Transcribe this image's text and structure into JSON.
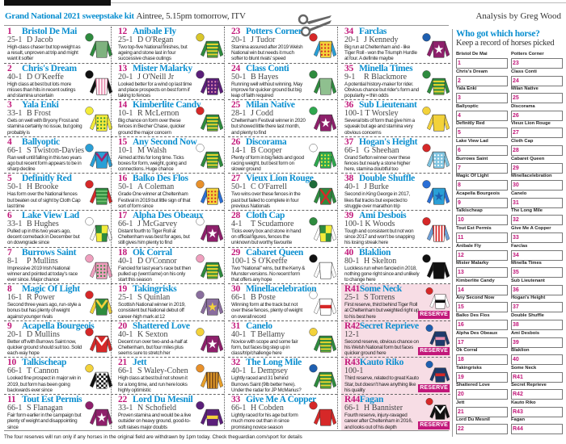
{
  "header": {
    "title": "Grand National 2021 sweepstake kit",
    "subtitle": "Aintree, 5.15pm tomorrow, ITV",
    "byline": "Analysis by Greg Wood"
  },
  "colors": {
    "accent": "#0a8fd0",
    "number": "#c2187a",
    "reserve_bg": "#f7dde5"
  },
  "reserve_label": "RESERVE",
  "horses": [
    {
      "num": "1",
      "name": "Bristol De Mai",
      "odds": "25-1",
      "jockey": "D Jacob",
      "desc": "High-class chaser but top weight as a result, unproven at trip and might want it softer",
      "silk": {
        "cap": "#2e8b3e",
        "body": "#7fb27f",
        "sleeves": "#2e8b3e",
        "pattern": "plain",
        "accent": "#2e8b3e"
      }
    },
    {
      "num": "2",
      "name": "Chris's Dream",
      "odds": "40-1",
      "jockey": "D O'Keeffe",
      "desc": "High class at best but lots more misses than hits in recent outings and stamina uncertain",
      "silk": {
        "cap": "#111",
        "body": "#fff",
        "sleeves": "#111",
        "pattern": "stripes",
        "accent": "#e88fb0"
      }
    },
    {
      "num": "3",
      "name": "Yala Enki",
      "odds": "33-1",
      "jockey": "B Frost",
      "desc": "Gets on well with Bryony Frost and stamina certainly no issue, but going probably is",
      "silk": {
        "cap": "#f3ec3a",
        "body": "#f3ec3a",
        "sleeves": "#f3ec3a",
        "pattern": "spots",
        "accent": "#2e8b3e"
      }
    },
    {
      "num": "4",
      "name": "Ballyoptic",
      "odds": "66-1",
      "jockey": "S Twiston-Davies",
      "desc": "Ran well until falling in this two years ago but recent form appears to be in sharp decline",
      "silk": {
        "cap": "#2a9fd6",
        "body": "#2a9fd6",
        "sleeves": "#2a9fd6",
        "pattern": "chevron",
        "accent": "#a0236e"
      }
    },
    {
      "num": "5",
      "name": "Definitly Red",
      "odds": "50-1",
      "jockey": "H Brooke",
      "desc": "Has form over the National fences but beaten out of sight by Cloth Cap last time",
      "silk": {
        "cap": "#d62828",
        "body": "#2e8b3e",
        "sleeves": "#d62828",
        "pattern": "hoops",
        "accent": "#6fbf6f"
      }
    },
    {
      "num": "6",
      "name": "Lake View Lad",
      "odds": "33-1",
      "jockey": "B Hughes",
      "desc": "Pulled up in this two years ago, decent comeback in December but on downgrade since",
      "silk": {
        "cap": "#fff",
        "body": "#2e8b3e",
        "sleeves": "#fff",
        "pattern": "quartered",
        "accent": "#f3ec3a"
      }
    },
    {
      "num": "7",
      "name": "Burrows Saint",
      "odds": "8-1",
      "jockey": "P Mullins",
      "desc": "Impressive 2019 Irish National winner and pointed at today's race ever since. Major chance",
      "silk": {
        "cap": "#ef9fbe",
        "body": "#ef9fbe",
        "sleeves": "#ef9fbe",
        "pattern": "spots",
        "accent": "#2e8b3e"
      }
    },
    {
      "num": "8",
      "name": "Magic Of Light",
      "odds": "16-1",
      "jockey": "R Power",
      "desc": "Second three years ago, run-style a bonus but has plenty of weight against younger rivals",
      "silk": {
        "cap": "#d62828",
        "body": "#2e8b3e",
        "sleeves": "#f3d23a",
        "pattern": "chevron",
        "accent": "#f3d23a"
      }
    },
    {
      "num": "9",
      "name": "Acapella Bourgeois",
      "odds": "20-1",
      "jockey": "D Mullins",
      "desc": "Better off with Burrows Saint now, quicker ground should suit too. Solid each-way hope",
      "silk": {
        "cap": "#d62828",
        "body": "#d62828",
        "sleeves": "#d62828",
        "pattern": "chevron",
        "accent": "#fff"
      }
    },
    {
      "num": "10",
      "name": "Talkischeap",
      "odds": "66-1",
      "jockey": "T Cannon",
      "desc": "Looked fine prospect in major win in 2019, but form has been going backwards ever since",
      "silk": {
        "cap": "#f3d23a",
        "body": "#fff",
        "sleeves": "#111",
        "pattern": "checks",
        "accent": "#111"
      }
    },
    {
      "num": "11",
      "name": "Tout Est Permis",
      "odds": "66-1",
      "jockey": "S Flanagan",
      "desc": "Fair form earlier in the campaign but plenty of weight and disappointing since",
      "silk": {
        "cap": "#8e1f6b",
        "body": "#8e1f6b",
        "sleeves": "#8e1f6b",
        "pattern": "star",
        "accent": "#fff"
      }
    },
    {
      "num": "12",
      "name": "Anibale Fly",
      "odds": "25-1",
      "jockey": "D O'Regan",
      "desc": "Two top-five National finishes, but ageing and stone last in four successive chase outings",
      "silk": {
        "cap": "#d9c62a",
        "body": "#2e8b3e",
        "sleeves": "#2e8b3e",
        "pattern": "hoops",
        "accent": "#e2d22f"
      }
    },
    {
      "num": "13",
      "name": "Mister Malarky",
      "odds": "20-1",
      "jockey": "J O'Neill Jr",
      "desc": "Looked better for a wind op last time and place prospects on best form if taking to fences",
      "silk": {
        "cap": "#5b1f7a",
        "body": "#5b1f7a",
        "sleeves": "#5b1f7a",
        "pattern": "spots",
        "accent": "#e88fb0"
      }
    },
    {
      "num": "14",
      "name": "Kimberlite Candy",
      "odds": "10-1",
      "jockey": "R McLernon",
      "desc": "Big chance on form over these fences in Becher Chase, quicker ground the major concern",
      "silk": {
        "cap": "#d62828",
        "body": "#2e8b3e",
        "sleeves": "#2e8b3e",
        "pattern": "hoops",
        "accent": "#e2d22f"
      }
    },
    {
      "num": "15",
      "name": "Any Second Now",
      "odds": "10-1",
      "jockey": "M Walsh",
      "desc": "Aimed at this for long time. Ticks boxes for form, weight, going and connections. Huge chance",
      "silk": {
        "cap": "#fff",
        "body": "#2e8b3e",
        "sleeves": "#2e8b3e",
        "pattern": "hoops",
        "accent": "#e2d22f"
      }
    },
    {
      "num": "16",
      "name": "Balko Des Flos",
      "odds": "50-1",
      "jockey": "A Coleman",
      "desc": "Grade One winner at Cheltenham Festival in 2019 but little sign of that sort of form since",
      "silk": {
        "cap": "#e8902a",
        "body": "#f3d23a",
        "sleeves": "#2a6fd6",
        "pattern": "spots",
        "accent": "#d62828"
      }
    },
    {
      "num": "17",
      "name": "Alpha Des Obeaux",
      "odds": "66-1",
      "jockey": "J McGarvey",
      "desc": "Distant fourth to Tiger Roll at Cheltenham was best for ages, but still gives him plenty to find",
      "silk": {
        "cap": "#fff",
        "body": "#8e1f6b",
        "sleeves": "#8e1f6b",
        "pattern": "star",
        "accent": "#fff"
      }
    },
    {
      "num": "18",
      "name": "Ok Corral",
      "odds": "40-1",
      "jockey": "D O'Connor",
      "desc": "Fancied for last year's race but then pulled up (went lame) on his only start this season",
      "silk": {
        "cap": "#ef9fbe",
        "body": "#2e8b3e",
        "sleeves": "#2e8b3e",
        "pattern": "hoops",
        "accent": "#e2d22f"
      }
    },
    {
      "num": "19",
      "name": "Takingrisks",
      "odds": "25-1",
      "jockey": "S Quinlan",
      "desc": "Scottish National winner in 2019, consistent but National debut off career-high mark at 12",
      "silk": {
        "cap": "#8a6e9e",
        "body": "#8a6e9e",
        "sleeves": "#8a6e9e",
        "pattern": "star",
        "accent": "#f3d23a"
      }
    },
    {
      "num": "20",
      "name": "Shattered Love",
      "odds": "40-1",
      "jockey": "K Sexton",
      "desc": "Decent run over two-and-a-half at Cheltenham, but four miles plus seems sure to stretch her",
      "silk": {
        "cap": "#f3d23a",
        "body": "#8e1f6b",
        "sleeves": "#8e1f6b",
        "pattern": "star",
        "accent": "#fff"
      }
    },
    {
      "num": "21",
      "name": "Jett",
      "odds": "66-1",
      "jockey": "S Waley-Cohen",
      "desc": "High class at best but not shown it for a long time, and run here looks highly optimistic",
      "silk": {
        "cap": "#e8902a",
        "body": "#e8a02a",
        "sleeves": "#e8a02a",
        "pattern": "stripes",
        "accent": "#7a4a1a"
      }
    },
    {
      "num": "22",
      "name": "Lord Du Mesnil",
      "odds": "33-1",
      "jockey": "N Schofield",
      "desc": "Proven stamina and would be a live outsider on heavy ground, good-to-soft raises major doubts",
      "silk": {
        "cap": "#5b1f7a",
        "body": "#5b1f7a",
        "sleeves": "#5b1f7a",
        "pattern": "band",
        "accent": "#f3d23a"
      }
    },
    {
      "num": "23",
      "name": "Potters Corner",
      "odds": "20-1",
      "jockey": "J Tudor",
      "desc": "Stamina assured after 2019 Welsh National win but needs it much softer to blunt rivals' speed",
      "silk": {
        "cap": "#d62828",
        "body": "#f3d23a",
        "sleeves": "#2a9fd6",
        "pattern": "spots",
        "accent": "#d62828"
      }
    },
    {
      "num": "24",
      "name": "Class Conti",
      "odds": "50-1",
      "jockey": "B Hayes",
      "desc": "Running well without winning. May improve for quicker ground but big leap of faith required",
      "silk": {
        "cap": "#2e8b3e",
        "body": "#8fc08f",
        "sleeves": "#2e8b3e",
        "pattern": "plain",
        "accent": "#2e8b3e"
      }
    },
    {
      "num": "25",
      "name": "Milan Native",
      "odds": "28-1",
      "jockey": "J Codd",
      "desc": "Cheltenham Festival winner in 2020 but showed little there last month, and plenty to find",
      "silk": {
        "cap": "#2ea84e",
        "body": "#8e1f6b",
        "sleeves": "#8e1f6b",
        "pattern": "star",
        "accent": "#fff"
      }
    },
    {
      "num": "26",
      "name": "Discorama",
      "odds": "14-1",
      "jockey": "B Cooper",
      "desc": "Plenty of form in big fields and good racing weight, but best form on slower ground",
      "silk": {
        "cap": "#fff",
        "body": "#2ea84e",
        "sleeves": "#2ea84e",
        "pattern": "spots",
        "accent": "#f3ec3a"
      }
    },
    {
      "num": "27",
      "name": "Vieux Lion Rouge",
      "odds": "50-1",
      "jockey": "C O'Farrell",
      "desc": "Two wins over these fences in the past but failed to complete in four previous Nationals",
      "silk": {
        "cap": "#1e6b3a",
        "body": "#2e8b3e",
        "sleeves": "#2e8b3e",
        "pattern": "cross",
        "accent": "#d62828"
      }
    },
    {
      "num": "28",
      "name": "Cloth Cap",
      "odds": "4-1",
      "jockey": "T Scudamore",
      "desc": "Ticks every box and stone in hand on official figures, fences the unknown but worthy favourite",
      "silk": {
        "cap": "#2e8b3e",
        "body": "#2e8b3e",
        "sleeves": "#fff",
        "pattern": "quartered",
        "accent": "#f3ec3a"
      }
    },
    {
      "num": "29",
      "name": "Cabaret Queen",
      "odds": "100-1",
      "jockey": "S O'Keeffe",
      "desc": "Two \"National\" wins, but the Kerry & Munster versions. No recent form that offers any hope",
      "silk": {
        "cap": "#111",
        "body": "#fff",
        "sleeves": "#fff",
        "pattern": "plain",
        "accent": "#d62828"
      }
    },
    {
      "num": "30",
      "name": "Minellacelebration",
      "odds": "66-1",
      "jockey": "B Poste",
      "desc": "Winning form at the track but not over these fences, plenty of weight on overall record",
      "silk": {
        "cap": "#fff",
        "body": "#fff",
        "sleeves": "#fff",
        "pattern": "band",
        "accent": "#d62828"
      }
    },
    {
      "num": "31",
      "name": "Canelo",
      "odds": "40-1",
      "jockey": "T Bellamy",
      "desc": "Novice with scope and some fair form, but faces big step up in class/trip/challenge here",
      "silk": {
        "cap": "#f3d23a",
        "body": "#2e8b3e",
        "sleeves": "#2e8b3e",
        "pattern": "hoops",
        "accent": "#e2d22f"
      }
    },
    {
      "num": "32",
      "name": "The Long Mile",
      "odds": "40-1",
      "jockey": "L Dempsey",
      "desc": "Lightly raced and 31 behind Burrows Saint (9lb better here). Under the radar for JP McManus?",
      "silk": {
        "cap": "#1e5fb0",
        "body": "#2e8b3e",
        "sleeves": "#2e8b3e",
        "pattern": "hoops",
        "accent": "#e2d22f"
      }
    },
    {
      "num": "33",
      "name": "Give Me A Copper",
      "odds": "66-1",
      "jockey": "H Cobden",
      "desc": "Lightly raced for his age but form much more out than in since promising novice season",
      "silk": {
        "cap": "#d62828",
        "body": "#d62828",
        "sleeves": "#d62828",
        "pattern": "plain",
        "accent": "#fff"
      }
    },
    {
      "num": "34",
      "name": "Farclas",
      "odds": "20-1",
      "jockey": "J Kennedy",
      "desc": "Big run at Cheltenham and - like Tiger Roll - won the Triumph Hurdle at four. A definite maybe",
      "silk": {
        "cap": "#1e5fb0",
        "body": "#8e1f6b",
        "sleeves": "#8e1f6b",
        "pattern": "star",
        "accent": "#fff"
      }
    },
    {
      "num": "35",
      "name": "Minella Times",
      "odds": "9-1",
      "jockey": "R Blackmore",
      "desc": "A potential history-maker for rider. Obvious chance but rider's form and popularity = thin odds",
      "silk": {
        "cap": "#2e8b3e",
        "body": "#2e8b3e",
        "sleeves": "#2e8b3e",
        "pattern": "hoops",
        "accent": "#e2d22f"
      }
    },
    {
      "num": "36",
      "name": "Sub Lieutenant",
      "odds": "100-1",
      "jockey": "T Worsley",
      "desc": "Several bits of form that give him a squeak but age and stamina very obvious concerns",
      "silk": {
        "cap": "#f3d23a",
        "body": "#f3d23a",
        "sleeves": "#f3d23a",
        "pattern": "plain",
        "accent": "#8e1f6b"
      }
    },
    {
      "num": "37",
      "name": "Hogan's Height",
      "odds": "66-1",
      "jockey": "G Sheehan",
      "desc": "Grand Sefton winner over these fences but nearly a stone higher here, stamina doubtful too",
      "silk": {
        "cap": "#d62828",
        "body": "#7fc4e0",
        "sleeves": "#7fc4e0",
        "pattern": "spots",
        "accent": "#fff"
      }
    },
    {
      "num": "38",
      "name": "Double Shuffle",
      "odds": "40-1",
      "jockey": "J Burke",
      "desc": "Second in King George in 2017, likes flat tracks but expected to struggle over marathon trip",
      "silk": {
        "cap": "#2a6fd6",
        "body": "#2a9fd6",
        "sleeves": "#2a6fd6",
        "pattern": "star",
        "accent": "#1e5fb0"
      }
    },
    {
      "num": "39",
      "name": "Ami Desbois",
      "odds": "100-1",
      "jockey": "K Woods",
      "desc": "Tough and consistent but not won since 2017 and won't be snapping his losing streak here",
      "silk": {
        "cap": "#d62828",
        "body": "#fff",
        "sleeves": "#6fa0d8",
        "pattern": "stripes",
        "accent": "#d62828"
      }
    },
    {
      "num": "40",
      "name": "Blaklion",
      "odds": "80-1",
      "jockey": "H Skelton",
      "desc": "Luckless run when fancied in 2018, nothing gone right since and unlikely to change here",
      "silk": {
        "cap": "#111",
        "body": "#111",
        "sleeves": "#111",
        "pattern": "plain",
        "accent": "#999"
      }
    },
    {
      "num": "R41",
      "name": "Some Neck",
      "odds": "25-1",
      "jockey": "S Torrens",
      "desc": "First reserve, third behind Tiger Roll at Cheltenham but weighted right up to his best here",
      "reserve": true,
      "silk": {
        "cap": "#d62828",
        "body": "#fff",
        "sleeves": "#fff",
        "pattern": "band",
        "accent": "#111"
      }
    },
    {
      "num": "R42",
      "name": "Secret Reprieve",
      "odds": "12-1",
      "jockey": "",
      "desc": "Second reserve, obvious chance on his Welsh National form but faces quicker ground here",
      "reserve": true,
      "silk": {
        "cap": "#1e5fb0",
        "body": "#1e3a6b",
        "sleeves": "#1e3a6b",
        "pattern": "band",
        "accent": "#e88fb0"
      }
    },
    {
      "num": "R43",
      "name": "Kauto Riko",
      "odds": "100-1",
      "jockey": "",
      "desc": "Third reserve, related to great Kauto Star, but doesn't have anything like his quality",
      "reserve": true,
      "silk": {
        "cap": "#1e5fb0",
        "body": "#1e3a6b",
        "sleeves": "#1e3a6b",
        "pattern": "band",
        "accent": "#d62828"
      }
    },
    {
      "num": "R44",
      "name": "Fagan",
      "odds": "66-1",
      "jockey": "H Bannister",
      "desc": "Fourth reserve, injury-ravaged career after Cheltenham in 2016, and looks out of his depth",
      "reserve": true,
      "silk": {
        "cap": "#d62828",
        "body": "#111",
        "sleeves": "#111",
        "pattern": "chevron",
        "accent": "#fff"
      }
    }
  ],
  "sidebar": {
    "title": "Who got which horse?",
    "subtitle": "Keep a record of horses picked"
  },
  "footer": "The four reserves will run only if any horses in the original field are withdrawn by 1pm today. Check theguardian.com/sport for details"
}
